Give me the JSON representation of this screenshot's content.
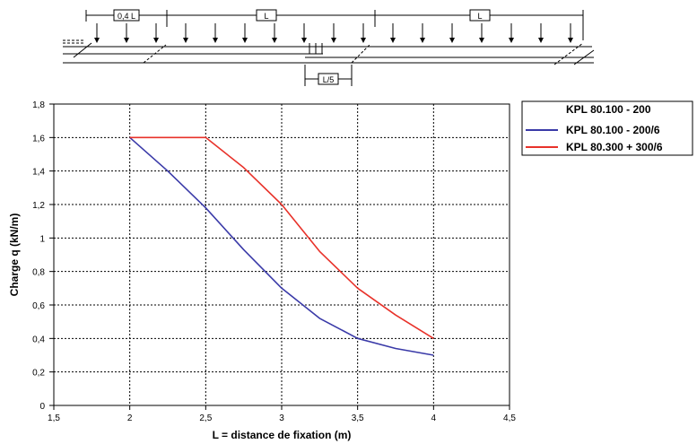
{
  "diagram": {
    "dimension_labels": [
      "0,4 L",
      "L",
      "L",
      "L/5"
    ]
  },
  "colors": {
    "series_1": "#3a3aa8",
    "series_2": "#e8322a",
    "grid": "#000000"
  },
  "chart_data": {
    "type": "line",
    "xlabel": "L = distance de fixation (m)",
    "ylabel": "Charge q (kN/m)",
    "xlim": [
      1.5,
      4.5
    ],
    "ylim": [
      0,
      1.8
    ],
    "x_ticks": [
      "1,5",
      "2",
      "2,5",
      "3",
      "3,5",
      "4",
      "4,5"
    ],
    "y_ticks": [
      "0",
      "0,2",
      "0,4",
      "0,6",
      "0,8",
      "1",
      "1,2",
      "1,4",
      "1,6",
      "1,8"
    ],
    "x_tick_values": [
      1.5,
      2,
      2.5,
      3,
      3.5,
      4,
      4.5
    ],
    "y_tick_values": [
      0,
      0.2,
      0.4,
      0.6,
      0.8,
      1.0,
      1.2,
      1.4,
      1.6,
      1.8
    ],
    "grid": "dotted",
    "legend_position": "top-right",
    "legend_header": "KPL 80.100 - 200",
    "series": [
      {
        "name": "KPL 80.100 - 200/6",
        "x": [
          2.0,
          2.25,
          2.5,
          2.75,
          3.0,
          3.25,
          3.5,
          3.75,
          4.0
        ],
        "y": [
          1.6,
          1.4,
          1.18,
          0.93,
          0.7,
          0.52,
          0.4,
          0.34,
          0.3
        ]
      },
      {
        "name": "KPL 80.300 + 300/6",
        "x": [
          2.0,
          2.5,
          2.75,
          3.0,
          3.25,
          3.5,
          3.75,
          4.0
        ],
        "y": [
          1.6,
          1.6,
          1.42,
          1.2,
          0.92,
          0.7,
          0.54,
          0.4
        ]
      }
    ]
  }
}
